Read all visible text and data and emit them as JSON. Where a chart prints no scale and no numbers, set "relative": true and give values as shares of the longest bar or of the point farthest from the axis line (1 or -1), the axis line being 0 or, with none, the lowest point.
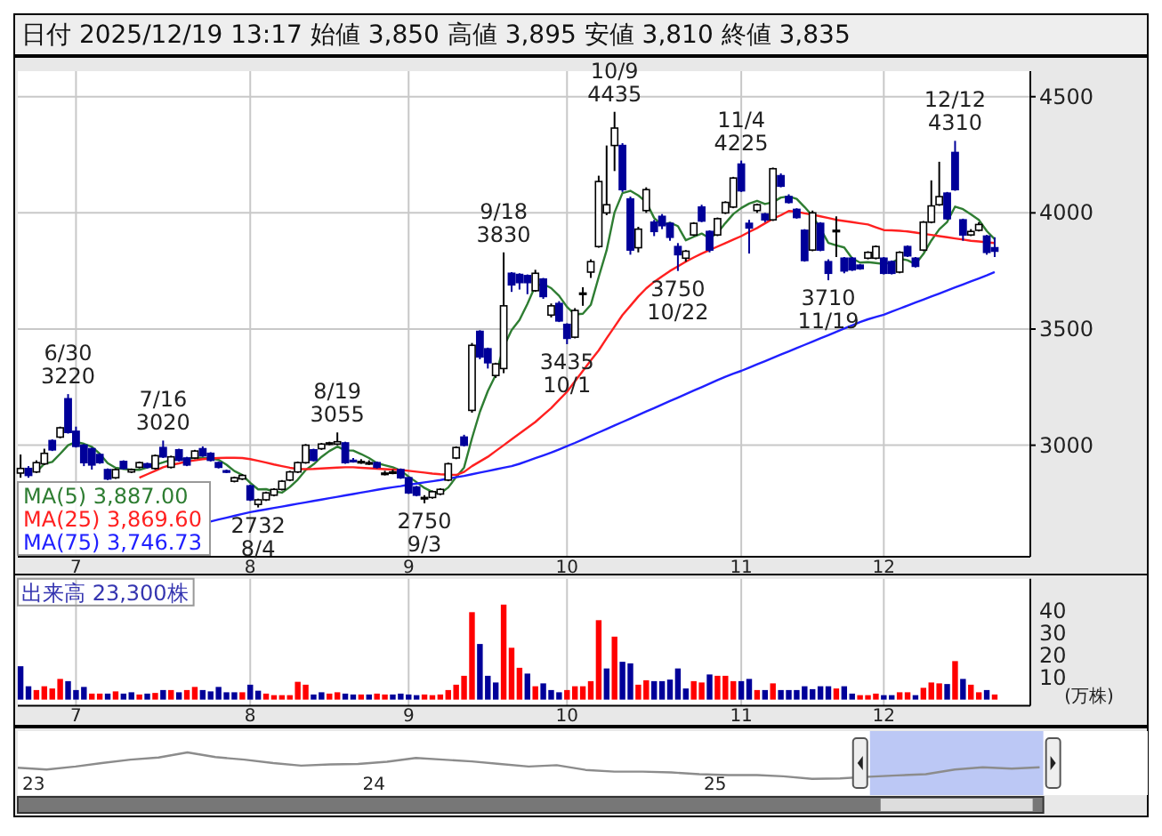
{
  "chart_data": [
    {
      "type": "candlestick",
      "title": "日付 2025/12/19 13:17 始値 3,850 高値 3,895 安値 3,810 終値 3,835",
      "categories": [
        null,
        null,
        null,
        null,
        null,
        null,
        null,
        "7",
        null,
        null,
        null,
        null,
        null,
        null,
        null,
        null,
        null,
        null,
        null,
        null,
        null,
        null,
        null,
        null,
        null,
        null,
        null,
        null,
        null,
        "8",
        null,
        null,
        null,
        null,
        null,
        null,
        null,
        null,
        null,
        null,
        null,
        null,
        null,
        null,
        null,
        null,
        null,
        null,
        null,
        "9",
        null,
        null,
        null,
        null,
        null,
        null,
        null,
        null,
        null,
        null,
        null,
        null,
        null,
        null,
        null,
        null,
        null,
        null,
        null,
        "10",
        null,
        null,
        null,
        null,
        null,
        null,
        null,
        null,
        null,
        null,
        null,
        null,
        null,
        null,
        null,
        null,
        null,
        null,
        null,
        null,
        null,
        "11",
        null,
        null,
        null,
        null,
        null,
        null,
        null,
        null,
        null,
        null,
        null,
        null,
        null,
        null,
        null,
        null,
        null,
        "12",
        null,
        null,
        null,
        null,
        null,
        null,
        null,
        null,
        null,
        null,
        null,
        null,
        null,
        null
      ],
      "ylim": [
        2520,
        4610
      ],
      "yticks": [
        3000,
        3500,
        4000,
        4500
      ],
      "grid": true,
      "legend": "bottom left",
      "series": [
        {
          "type": "candlestick",
          "colors": [
            "#ffffff",
            "#000099",
            "#ffffff",
            "#ffffff",
            "#000099",
            "#ffffff",
            "#000099",
            "#000099",
            "#000099",
            "#000099",
            "#000099",
            "#000099",
            "#ffffff",
            "#000099",
            "#ffffff",
            "#ffffff",
            "#000099",
            "#ffffff",
            "#000099",
            "#ffffff",
            "#000099",
            "#000099",
            "#ffffff",
            "#000099",
            "#000099",
            "#000099",
            "#000099",
            "#ffffff",
            "#ffffff",
            "#000099",
            "#ffffff",
            "#ffffff",
            "#ffffff",
            "#ffffff",
            "#ffffff",
            "#ffffff",
            "#ffffff",
            "#000099",
            "#ffffff",
            "#ffffff",
            "#ffffff",
            "#000099",
            "#000099",
            "#ffffff",
            "#ffffff",
            "#000099",
            "#ffffff",
            "#ffffff",
            "#000099",
            "#000099",
            "#000099",
            "#ffffff",
            "#ffffff",
            "#ffffff",
            "#ffffff",
            "#ffffff",
            "#000099",
            "#ffffff",
            "#000099",
            "#000099",
            "#ffffff",
            "#ffffff",
            "#000099",
            "#000099",
            "#000099",
            "#ffffff",
            "#000099",
            "#ffffff",
            "#000099",
            "#000099",
            "#ffffff",
            "#ffffff",
            "#ffffff",
            "#ffffff",
            "#ffffff",
            "#ffffff",
            "#000099",
            "#000099",
            "#ffffff",
            "#ffffff",
            "#000099",
            "#000099",
            "#000099",
            "#000099",
            "#ffffff",
            "#ffffff",
            "#000099",
            "#000099",
            "#ffffff",
            "#ffffff",
            "#ffffff",
            "#000099",
            "#000099",
            "#ffffff",
            "#000099",
            "#ffffff",
            "#000099",
            "#000099",
            "#000099",
            "#000099",
            "#ffffff",
            "#000099",
            "#000099",
            "#ffffff",
            "#000099",
            "#000099",
            "#000099",
            "#ffffff",
            "#ffffff",
            "#000099",
            "#000099",
            "#ffffff",
            "#000099",
            "#000099",
            "#ffffff",
            "#ffffff",
            "#ffffff",
            "#000099",
            "#000099",
            "#000099",
            "#ffffff",
            "#ffffff",
            "#000099",
            "#000099"
          ],
          "ohlc": [
            [
              2880,
              2960,
              2860,
              2900
            ],
            [
              2900,
              2910,
              2860,
              2870
            ],
            [
              2885,
              2935,
              2880,
              2925
            ],
            [
              2920,
              2985,
              2915,
              2965
            ],
            [
              3020,
              3025,
              2975,
              2980
            ],
            [
              3035,
              3080,
              3030,
              3075
            ],
            [
              3200,
              3220,
              3050,
              3055
            ],
            [
              3060,
              3080,
              2990,
              2995
            ],
            [
              3000,
              3005,
              2910,
              2925
            ],
            [
              2985,
              2990,
              2895,
              2915
            ],
            [
              2960,
              2965,
              2920,
              2925
            ],
            [
              2895,
              2900,
              2850,
              2855
            ],
            [
              2860,
              2900,
              2855,
              2895
            ],
            [
              2930,
              2935,
              2895,
              2900
            ],
            [
              2885,
              2900,
              2880,
              2895
            ],
            [
              2905,
              2930,
              2900,
              2925
            ],
            [
              2920,
              2925,
              2900,
              2905
            ],
            [
              2900,
              2960,
              2895,
              2955
            ],
            [
              2990,
              3020,
              2945,
              2950
            ],
            [
              2905,
              2955,
              2900,
              2950
            ],
            [
              2980,
              2985,
              2930,
              2935
            ],
            [
              2945,
              2950,
              2910,
              2915
            ],
            [
              2945,
              2980,
              2940,
              2975
            ],
            [
              2985,
              2995,
              2950,
              2955
            ],
            [
              2965,
              2970,
              2930,
              2935
            ],
            [
              2925,
              2930,
              2900,
              2905
            ],
            [
              2890,
              2895,
              2880,
              2888
            ],
            [
              2845,
              2865,
              2840,
              2860
            ],
            [
              2855,
              2875,
              2850,
              2870
            ],
            [
              2825,
              2830,
              2760,
              2765
            ],
            [
              2745,
              2770,
              2732,
              2765
            ],
            [
              2765,
              2800,
              2760,
              2795
            ],
            [
              2785,
              2815,
              2780,
              2810
            ],
            [
              2810,
              2850,
              2805,
              2845
            ],
            [
              2850,
              2890,
              2845,
              2885
            ],
            [
              2885,
              2930,
              2880,
              2925
            ],
            [
              2925,
              3005,
              2920,
              3000
            ],
            [
              2980,
              2985,
              2930,
              2935
            ],
            [
              2985,
              3010,
              2980,
              3005
            ],
            [
              3005,
              3015,
              3000,
              3010
            ],
            [
              3005,
              3055,
              3000,
              3015
            ],
            [
              3010,
              3015,
              2920,
              2925
            ],
            [
              2935,
              2945,
              2925,
              2930
            ],
            [
              2930,
              2940,
              2920,
              2930
            ],
            [
              2920,
              2935,
              2915,
              2925
            ],
            [
              2925,
              2930,
              2900,
              2905
            ],
            [
              2880,
              2890,
              2870,
              2880
            ],
            [
              2885,
              2895,
              2875,
              2885
            ],
            [
              2895,
              2900,
              2855,
              2860
            ],
            [
              2860,
              2865,
              2790,
              2795
            ],
            [
              2820,
              2825,
              2780,
              2785
            ],
            [
              2775,
              2785,
              2750,
              2775
            ],
            [
              2775,
              2805,
              2770,
              2800
            ],
            [
              2790,
              2815,
              2785,
              2810
            ],
            [
              2850,
              2925,
              2845,
              2920
            ],
            [
              2945,
              2995,
              2940,
              2990
            ],
            [
              3035,
              3045,
              2995,
              3000
            ],
            [
              3150,
              3440,
              3140,
              3430
            ],
            [
              3490,
              3495,
              3370,
              3380
            ],
            [
              3415,
              3420,
              3330,
              3355
            ],
            [
              3300,
              3355,
              3290,
              3350
            ],
            [
              3330,
              3830,
              3310,
              3600
            ],
            [
              3740,
              3745,
              3660,
              3690
            ],
            [
              3735,
              3740,
              3670,
              3700
            ],
            [
              3730,
              3735,
              3650,
              3700
            ],
            [
              3665,
              3755,
              3660,
              3740
            ],
            [
              3715,
              3720,
              3630,
              3640
            ],
            [
              3560,
              3610,
              3550,
              3600
            ],
            [
              3610,
              3620,
              3530,
              3535
            ],
            [
              3520,
              3525,
              3435,
              3460
            ],
            [
              3465,
              3590,
              3460,
              3580
            ],
            [
              3650,
              3680,
              3600,
              3655
            ],
            [
              3745,
              3800,
              3720,
              3790
            ],
            [
              3855,
              4160,
              3850,
              4135
            ],
            [
              4000,
              4290,
              3990,
              4035
            ],
            [
              4290,
              4435,
              4180,
              4365
            ],
            [
              4290,
              4300,
              4090,
              4100
            ],
            [
              4060,
              4070,
              3820,
              3840
            ],
            [
              3850,
              3940,
              3830,
              3930
            ],
            [
              4010,
              4110,
              4000,
              4100
            ],
            [
              3960,
              3970,
              3900,
              3920
            ],
            [
              3985,
              3995,
              3930,
              3945
            ],
            [
              3955,
              3960,
              3880,
              3895
            ],
            [
              3855,
              3870,
              3750,
              3820
            ],
            [
              3805,
              3840,
              3790,
              3835
            ],
            [
              3905,
              3960,
              3900,
              3955
            ],
            [
              4025,
              4035,
              3960,
              3965
            ],
            [
              3920,
              3925,
              3830,
              3840
            ],
            [
              3905,
              3980,
              3900,
              3975
            ],
            [
              4000,
              4050,
              3995,
              4045
            ],
            [
              4025,
              4155,
              4020,
              4150
            ],
            [
              4210,
              4225,
              4090,
              4095
            ],
            [
              3955,
              3970,
              3825,
              3935
            ],
            [
              4010,
              4040,
              4000,
              4035
            ],
            [
              3995,
              4000,
              3960,
              3970
            ],
            [
              3970,
              4195,
              3965,
              4190
            ],
            [
              4160,
              4170,
              4110,
              4115
            ],
            [
              4070,
              4080,
              4040,
              4045
            ],
            [
              4015,
              4020,
              3975,
              3980
            ],
            [
              3925,
              3930,
              3790,
              3795
            ],
            [
              3840,
              4010,
              3835,
              4000
            ],
            [
              3955,
              3960,
              3835,
              3840
            ],
            [
              3790,
              3800,
              3710,
              3740
            ],
            [
              3920,
              3985,
              3810,
              3925
            ],
            [
              3805,
              3810,
              3740,
              3750
            ],
            [
              3805,
              3810,
              3750,
              3755
            ],
            [
              3775,
              3780,
              3755,
              3760
            ],
            [
              3805,
              3835,
              3800,
              3830
            ],
            [
              3805,
              3860,
              3800,
              3855
            ],
            [
              3805,
              3810,
              3735,
              3740
            ],
            [
              3790,
              3795,
              3735,
              3740
            ],
            [
              3745,
              3835,
              3740,
              3830
            ],
            [
              3855,
              3860,
              3810,
              3815
            ],
            [
              3805,
              3810,
              3765,
              3770
            ],
            [
              3840,
              3965,
              3835,
              3960
            ],
            [
              3960,
              4140,
              3955,
              4030
            ],
            [
              4035,
              4220,
              4030,
              4070
            ],
            [
              4085,
              4090,
              3970,
              3975
            ],
            [
              4260,
              4310,
              4095,
              4100
            ],
            [
              3970,
              3975,
              3880,
              3905
            ],
            [
              3905,
              3930,
              3900,
              3920
            ],
            [
              3925,
              3960,
              3920,
              3950
            ],
            [
              3900,
              3905,
              3820,
              3830
            ],
            [
              3850,
              3895,
              3810,
              3835
            ]
          ]
        },
        {
          "name": "MA(5) 3,887.00",
          "type": "line",
          "color": "#2e7d32",
          "values": [
            null,
            null,
            2885,
            2920,
            2928,
            2963,
            3000,
            3014,
            3006,
            2993,
            2963,
            2923,
            2903,
            2898,
            2894,
            2894,
            2904,
            2916,
            2926,
            2937,
            2939,
            2941,
            2946,
            2946,
            2943,
            2937,
            2916,
            2889,
            2872,
            2838,
            2810,
            2811,
            2801,
            2796,
            2820,
            2852,
            2893,
            2918,
            2950,
            2975,
            2994,
            2978,
            2977,
            2962,
            2945,
            2923,
            2914,
            2905,
            2891,
            2865,
            2841,
            2816,
            2799,
            2793,
            2818,
            2863,
            2904,
            3030,
            3144,
            3233,
            3303,
            3423,
            3495,
            3539,
            3608,
            3686,
            3694,
            3676,
            3643,
            3595,
            3563,
            3566,
            3604,
            3724,
            3839,
            4002,
            4085,
            4095,
            4075,
            4047,
            3978,
            3947,
            3958,
            3943,
            3882,
            3897,
            3911,
            3890,
            3914,
            3956,
            3995,
            4021,
            4040,
            4052,
            4038,
            4046,
            4066,
            4071,
            4060,
            4025,
            3987,
            3932,
            3871,
            3860,
            3851,
            3804,
            3786,
            3788,
            3784,
            3780,
            3787,
            3803,
            3796,
            3779,
            3823,
            3881,
            3929,
            3961,
            4027,
            4016,
            3994,
            3970,
            3922,
            3887
          ]
        },
        {
          "name": "MA(25) 3,869.60",
          "type": "line",
          "color": "#ff2020",
          "values": [
            null,
            null,
            null,
            null,
            null,
            null,
            null,
            null,
            null,
            null,
            null,
            null,
            null,
            null,
            null,
            2860,
            2875,
            2890,
            2905,
            2915,
            2922,
            2930,
            2935,
            2940,
            2943,
            2945,
            2946,
            2946,
            2945,
            2940,
            2933,
            2925,
            2917,
            2910,
            2903,
            2898,
            2897,
            2898,
            2900,
            2902,
            2904,
            2905,
            2905,
            2903,
            2901,
            2899,
            2897,
            2895,
            2893,
            2890,
            2886,
            2882,
            2878,
            2875,
            2873,
            2872,
            2885,
            2910,
            2930,
            2950,
            2975,
            3000,
            3025,
            3050,
            3075,
            3100,
            3130,
            3160,
            3195,
            3230,
            3275,
            3320,
            3365,
            3408,
            3460,
            3510,
            3560,
            3600,
            3640,
            3675,
            3703,
            3727,
            3750,
            3770,
            3790,
            3808,
            3825,
            3840,
            3855,
            3870,
            3885,
            3900,
            3918,
            3935,
            3955,
            3975,
            3990,
            4008,
            4005,
            3998,
            3992,
            3985,
            3978,
            3970,
            3965,
            3960,
            3955,
            3950,
            3938,
            3926,
            3925,
            3923,
            3920,
            3915,
            3910,
            3905,
            3900,
            3895,
            3890,
            3885,
            3880,
            3877,
            3873,
            3870
          ]
        },
        {
          "name": "MA(75) 3,746.73",
          "type": "line",
          "color": "#2020ff",
          "values": [
            null,
            null,
            null,
            null,
            null,
            null,
            null,
            null,
            null,
            null,
            null,
            null,
            null,
            null,
            null,
            null,
            null,
            null,
            null,
            null,
            null,
            null,
            null,
            null,
            2672,
            2680,
            2688,
            2696,
            2704,
            2712,
            2718,
            2724,
            2730,
            2736,
            2742,
            2748,
            2754,
            2760,
            2766,
            2772,
            2778,
            2784,
            2790,
            2796,
            2802,
            2808,
            2814,
            2819,
            2824,
            2830,
            2835,
            2840,
            2845,
            2850,
            2856,
            2862,
            2868,
            2875,
            2882,
            2889,
            2896,
            2903,
            2910,
            2920,
            2932,
            2944,
            2956,
            2968,
            2982,
            2996,
            3010,
            3025,
            3040,
            3055,
            3070,
            3085,
            3100,
            3115,
            3130,
            3145,
            3160,
            3175,
            3190,
            3205,
            3220,
            3235,
            3250,
            3265,
            3280,
            3295,
            3308,
            3320,
            3334,
            3348,
            3362,
            3376,
            3390,
            3404,
            3418,
            3432,
            3446,
            3460,
            3474,
            3488,
            3502,
            3516,
            3530,
            3542,
            3552,
            3562,
            3575,
            3588,
            3601,
            3614,
            3627,
            3640,
            3653,
            3666,
            3679,
            3692,
            3705,
            3718,
            3731,
            3745
          ]
        }
      ],
      "annotations": [
        {
          "text": "6/30\n3220",
          "y": 3220
        },
        {
          "text": "7/16\n3020",
          "y": 3020
        },
        {
          "text": "2732\n8/4",
          "y": 2732
        },
        {
          "text": "8/19\n3055",
          "y": 3055
        },
        {
          "text": "2750\n9/3",
          "y": 2750
        },
        {
          "text": "9/18\n3830",
          "y": 3830
        },
        {
          "text": "3435\n10/1",
          "y": 3435
        },
        {
          "text": "10/9\n4435",
          "y": 4435
        },
        {
          "text": "3750\n10/22",
          "y": 3750
        },
        {
          "text": "11/4\n4225",
          "y": 4225
        },
        {
          "text": "3710\n11/19",
          "y": 3710
        },
        {
          "text": "12/12\n4310",
          "y": 4310
        }
      ]
    },
    {
      "type": "bar",
      "title": "出来高 23,300株",
      "ylabel": "(万株)",
      "categories": [
        null,
        null,
        null,
        null,
        null,
        null,
        null,
        "7",
        null,
        null,
        null,
        null,
        null,
        null,
        null,
        null,
        null,
        null,
        null,
        null,
        null,
        null,
        null,
        null,
        null,
        null,
        null,
        null,
        null,
        "8",
        null,
        null,
        null,
        null,
        null,
        null,
        null,
        null,
        null,
        null,
        null,
        null,
        null,
        null,
        null,
        null,
        null,
        null,
        null,
        "9",
        null,
        null,
        null,
        null,
        null,
        null,
        null,
        null,
        null,
        null,
        null,
        null,
        null,
        null,
        null,
        null,
        null,
        null,
        null,
        "10",
        null,
        null,
        null,
        null,
        null,
        null,
        null,
        null,
        null,
        null,
        null,
        null,
        null,
        null,
        null,
        null,
        null,
        null,
        null,
        null,
        null,
        "11",
        null,
        null,
        null,
        null,
        null,
        null,
        null,
        null,
        null,
        null,
        null,
        null,
        null,
        null,
        null,
        null,
        null,
        "12",
        null,
        null,
        null,
        null,
        null,
        null,
        null,
        null,
        null,
        null,
        null,
        null,
        null,
        null
      ],
      "values": [
        15,
        6,
        4.3,
        6,
        5,
        9.3,
        8.3,
        4.3,
        5.7,
        2.7,
        2.7,
        2.7,
        3.7,
        2.7,
        3.3,
        2.3,
        2.7,
        3,
        4.3,
        4.3,
        3.3,
        4.3,
        5.7,
        4.3,
        3.7,
        5.7,
        3.3,
        3.3,
        3.3,
        6.7,
        4,
        2.7,
        2,
        2,
        2,
        8,
        6.7,
        2.3,
        3.3,
        2.7,
        3.3,
        2.7,
        2.3,
        2.3,
        2.3,
        2.7,
        2.3,
        2.3,
        2.7,
        2.3,
        2,
        2.3,
        2,
        2.3,
        4.3,
        6.7,
        10.7,
        39.3,
        25,
        10.7,
        7.7,
        42.7,
        23.3,
        14.3,
        11.7,
        6,
        7.3,
        4.3,
        3.3,
        4.3,
        6,
        6,
        8.3,
        35.7,
        14,
        28.3,
        17,
        16.3,
        6.7,
        8.7,
        8.3,
        8.3,
        9,
        14,
        5,
        8.3,
        7.7,
        11.3,
        10.7,
        10.7,
        8.3,
        8.3,
        9.3,
        4.3,
        4.3,
        7.3,
        4.3,
        4.3,
        4.3,
        6,
        4.7,
        6,
        6,
        5,
        6,
        2.7,
        2,
        2,
        2.7,
        2,
        2,
        3.3,
        3.3,
        2,
        5.3,
        7.7,
        7.3,
        7,
        17.3,
        9.3,
        6.7,
        3.3,
        4.3,
        2.3
      ],
      "colors": [
        "#000099",
        "#000099",
        "#ff0000",
        "#ff0000",
        "#ff0000",
        "#ff0000",
        "#000099",
        "#000099",
        "#000099",
        "#ff0000",
        "#ff0000",
        "#000099",
        "#ff0000",
        "#000099",
        "#000099",
        "#ff0000",
        "#000099",
        "#ff0000",
        "#000099",
        "#ff0000",
        "#000099",
        "#ff0000",
        "#ff0000",
        "#000099",
        "#000099",
        "#000099",
        "#000099",
        "#000099",
        "#ff0000",
        "#000099",
        "#000099",
        "#ff0000",
        "#ff0000",
        "#ff0000",
        "#ff0000",
        "#ff0000",
        "#ff0000",
        "#000099",
        "#000099",
        "#ff0000",
        "#ff0000",
        "#000099",
        "#000099",
        "#ff0000",
        "#000099",
        "#ff0000",
        "#ff0000",
        "#000099",
        "#000099",
        "#000099",
        "#000099",
        "#ff0000",
        "#ff0000",
        "#ff0000",
        "#ff0000",
        "#ff0000",
        "#ff0000",
        "#ff0000",
        "#000099",
        "#000099",
        "#000099",
        "#ff0000",
        "#ff0000",
        "#ff0000",
        "#000099",
        "#ff0000",
        "#000099",
        "#000099",
        "#000099",
        "#ff0000",
        "#ff0000",
        "#ff0000",
        "#ff0000",
        "#ff0000",
        "#000099",
        "#ff0000",
        "#000099",
        "#000099",
        "#ff0000",
        "#ff0000",
        "#000099",
        "#000099",
        "#000099",
        "#000099",
        "#000099",
        "#ff0000",
        "#ff0000",
        "#000099",
        "#ff0000",
        "#ff0000",
        "#ff0000",
        "#000099",
        "#000099",
        "#ff0000",
        "#000099",
        "#ff0000",
        "#000099",
        "#000099",
        "#000099",
        "#000099",
        "#000099",
        "#000099",
        "#000099",
        "#ff0000",
        "#000099",
        "#000099",
        "#ff0000",
        "#ff0000",
        "#ff0000",
        "#000099",
        "#000099",
        "#ff0000",
        "#ff0000",
        "#000099",
        "#ff0000",
        "#ff0000",
        "#ff0000",
        "#000099",
        "#ff0000",
        "#000099",
        "#ff0000",
        "#ff0000",
        "#000099",
        "#ff0000"
      ],
      "ylim": [
        -2.7,
        54.3
      ],
      "yticks": [
        10,
        20,
        30,
        40
      ],
      "grid": "x"
    },
    {
      "type": "line",
      "relative": true,
      "x": [
        "2022-12-15",
        "2023-01-15",
        "2023-02-15",
        "2023-03-15",
        "2023-04-15",
        "2023-05-15",
        "2023-06-15",
        "2023-07-15",
        "2023-08-15",
        "2023-09-15",
        "2023-10-15",
        "2023-11-15",
        "2023-12-15",
        "2024-01-15",
        "2024-02-15",
        "2024-03-15",
        "2024-04-15",
        "2024-05-15",
        "2024-06-15",
        "2024-07-15",
        "2024-08-15",
        "2024-09-15",
        "2024-10-15",
        "2024-11-15",
        "2024-12-15",
        "2025-01-15",
        "2025-02-15",
        "2025-03-15",
        "2025-04-15",
        "2025-05-15",
        "2025-06-15",
        "2025-07-15",
        "2025-08-15",
        "2025-09-15",
        "2025-10-15",
        "2025-11-15",
        "2025-12-15"
      ],
      "xlim": [
        "2022-12-15",
        "2026-04-10"
      ],
      "xticks": [
        {
          "value": "2023-01-01",
          "label": "23"
        },
        {
          "value": "2024-01-01",
          "label": "24"
        },
        {
          "value": "2025-01-01",
          "label": "25"
        }
      ],
      "series": [
        {
          "color": "#8c8c8c",
          "values": [
            0.64,
            0.6,
            0.67,
            0.75,
            0.83,
            0.88,
            1,
            0.89,
            0.83,
            0.75,
            0.69,
            0.72,
            0.73,
            0.78,
            0.87,
            0.83,
            0.79,
            0.73,
            0.67,
            0.7,
            0.59,
            0.55,
            0.55,
            0.53,
            0.49,
            0.47,
            0.47,
            0.44,
            0.38,
            0.39,
            0.43,
            0.46,
            0.49,
            0.6,
            0.65,
            0.62,
            0.65
          ]
        }
      ],
      "bands": [
        {
          "axis": "x",
          "from": "2025-06-16",
          "to": "2025-12-19",
          "color": "#bcc8f5"
        }
      ]
    }
  ]
}
